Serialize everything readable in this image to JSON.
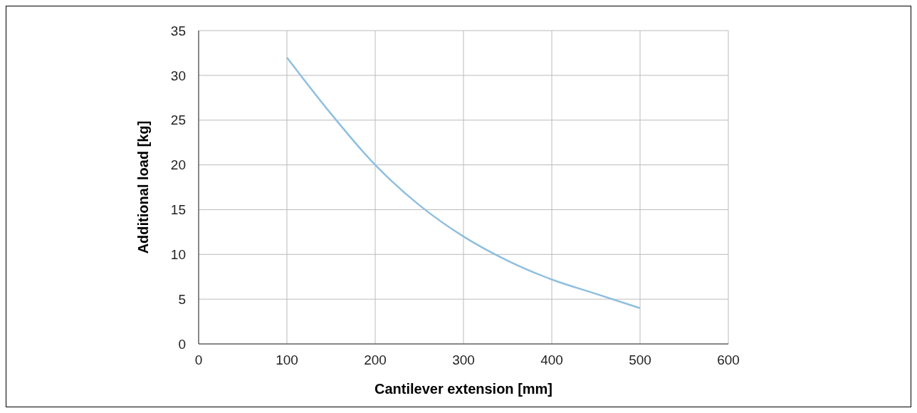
{
  "chart_data": {
    "type": "line",
    "xlabel": "Cantilever extension [mm]",
    "ylabel": "Additional load [kg]",
    "x": [
      100,
      125,
      150,
      200,
      250,
      300,
      350,
      400,
      450,
      500
    ],
    "series": [
      {
        "color": "#8fbfdf",
        "values": [
          32,
          28.8,
          25.7,
          20,
          15.5,
          12,
          9.3,
          7.2,
          5.6,
          4
        ]
      }
    ],
    "xlim": [
      0,
      600
    ],
    "xticks": [
      0,
      100,
      200,
      300,
      400,
      500,
      600
    ],
    "ylim": [
      0,
      35
    ],
    "yticks": [
      0,
      5,
      10,
      15,
      20,
      25,
      30,
      35
    ],
    "grid": true,
    "marker": "none",
    "line_style": "solid"
  }
}
